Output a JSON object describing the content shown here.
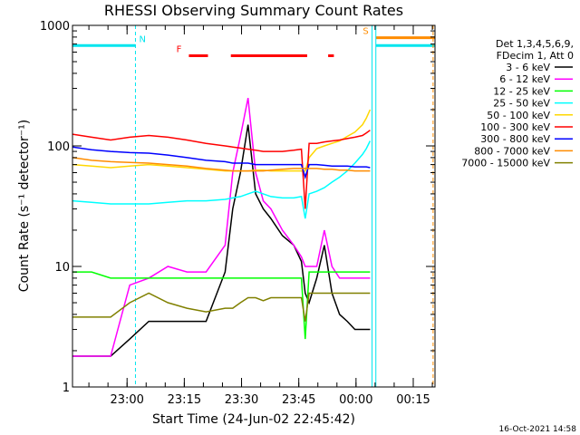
{
  "chart_data": {
    "type": "line",
    "title": "RHESSI Observing Summary Count Rates",
    "xlabel": "Start Time (24-Jun-02 22:45:42)",
    "ylabel": "Count Rate (s⁻¹ detector⁻¹)",
    "ylog": true,
    "ylim": [
      1,
      1000
    ],
    "xlim_minutes_after_start": [
      0,
      95
    ],
    "x_ticks": [
      "23:00",
      "23:15",
      "23:30",
      "23:45",
      "00:00",
      "00:15"
    ],
    "x_tick_minutes": [
      14.3,
      29.3,
      44.3,
      59.3,
      74.3,
      89.3
    ],
    "y_ticks": [
      "1",
      "10",
      "100",
      "1000"
    ],
    "y_tick_values": [
      1,
      10,
      100,
      1000
    ],
    "legend_header": [
      "Det 1,3,4,5,6,9,",
      "FDecim 1, Att 0"
    ],
    "legend_position": "right",
    "flags": [
      {
        "label": "N",
        "color": "#00e5ee",
        "segments": [
          [
            0,
            16.5
          ]
        ],
        "level": 680
      },
      {
        "label": "F",
        "color": "#ff0000",
        "segments": [
          [
            30.5,
            35.5
          ],
          [
            41.5,
            61.5
          ],
          [
            67,
            68.5
          ]
        ],
        "level": 560
      },
      {
        "label": "S",
        "color": "#ff8c00",
        "segments": [
          [
            79.5,
            95
          ]
        ],
        "level": 790
      },
      {
        "label": "",
        "color": "#00e5ee",
        "segments": [
          [
            79.5,
            95
          ]
        ],
        "level": 680
      }
    ],
    "vlines": [
      {
        "minute": 16.5,
        "color": "#00e5ee",
        "dashed": true
      },
      {
        "minute": 78.5,
        "color": "#00e5ee",
        "dashed": false
      },
      {
        "minute": 79.5,
        "color": "#00e5ee",
        "dashed": false
      },
      {
        "minute": 94.5,
        "color": "#ff8c00",
        "dashed": true
      },
      {
        "minute": 95.2,
        "color": "#00e5ee",
        "dashed": true
      }
    ],
    "x": [
      0,
      5,
      10,
      15,
      20,
      25,
      30,
      35,
      40,
      42,
      44,
      46,
      48,
      50,
      52,
      55,
      58,
      60,
      61,
      62,
      64,
      66,
      68,
      70,
      72,
      74,
      76,
      77,
      78
    ],
    "series": [
      {
        "name": "3 - 6 keV",
        "color": "#000000",
        "values": [
          1.8,
          1.8,
          1.8,
          2.5,
          3.5,
          3.5,
          3.5,
          3.5,
          9,
          30,
          60,
          150,
          40,
          30,
          25,
          18,
          15,
          11,
          6,
          5,
          8,
          15,
          6,
          4,
          3.5,
          3,
          3,
          3,
          3
        ]
      },
      {
        "name": "6 - 12 keV",
        "color": "#ff00ff",
        "values": [
          1.8,
          1.8,
          1.8,
          7,
          8,
          10,
          9,
          9,
          15,
          60,
          120,
          250,
          60,
          35,
          30,
          20,
          15,
          12,
          10,
          10,
          10,
          20,
          10,
          8,
          8,
          8,
          8,
          8,
          8
        ]
      },
      {
        "name": "12 - 25 keV",
        "color": "#00ff00",
        "values": [
          9,
          9,
          8,
          8,
          8,
          8,
          8,
          8,
          8,
          8,
          8,
          8,
          8,
          8,
          8,
          8,
          8,
          8,
          2.5,
          9,
          9,
          9,
          9,
          9,
          9,
          9,
          9,
          9,
          9
        ]
      },
      {
        "name": "25 - 50 keV",
        "color": "#00ffff",
        "values": [
          35,
          34,
          33,
          33,
          33,
          34,
          35,
          35,
          36,
          37,
          38,
          40,
          42,
          40,
          38,
          37,
          37,
          38,
          25,
          40,
          42,
          45,
          50,
          55,
          62,
          72,
          85,
          95,
          110
        ]
      },
      {
        "name": "50 - 100 keV",
        "color": "#ffd700",
        "values": [
          70,
          68,
          66,
          68,
          70,
          68,
          66,
          64,
          62,
          62,
          62,
          62,
          63,
          63,
          62,
          62,
          62,
          62,
          62,
          80,
          95,
          100,
          105,
          110,
          120,
          130,
          150,
          170,
          200
        ]
      },
      {
        "name": "100 - 300 keV",
        "color": "#ff0000",
        "values": [
          125,
          118,
          112,
          118,
          122,
          118,
          112,
          105,
          100,
          98,
          96,
          94,
          92,
          90,
          90,
          90,
          92,
          94,
          30,
          105,
          105,
          108,
          110,
          112,
          115,
          118,
          122,
          128,
          135
        ]
      },
      {
        "name": "300 - 800 keV",
        "color": "#0000ff",
        "values": [
          98,
          93,
          90,
          88,
          87,
          84,
          80,
          76,
          74,
          72,
          72,
          72,
          70,
          70,
          70,
          70,
          70,
          70,
          55,
          70,
          70,
          69,
          68,
          68,
          68,
          67,
          67,
          67,
          66
        ]
      },
      {
        "name": "800 - 7000 keV",
        "color": "#ff8c00",
        "values": [
          80,
          76,
          74,
          73,
          72,
          70,
          68,
          65,
          63,
          62,
          62,
          62,
          62,
          62,
          63,
          64,
          65,
          65,
          65,
          65,
          65,
          64,
          64,
          63,
          63,
          62,
          62,
          62,
          62
        ]
      },
      {
        "name": "7000 - 15000 keV",
        "color": "#808000",
        "values": [
          3.8,
          3.8,
          3.8,
          5,
          6,
          5,
          4.5,
          4.2,
          4.5,
          4.5,
          5,
          5.5,
          5.5,
          5.2,
          5.5,
          5.5,
          5.5,
          5.5,
          3.5,
          6,
          6,
          6,
          6,
          6,
          6,
          6,
          6,
          6,
          6
        ]
      }
    ]
  },
  "footer": {
    "timestamp": "16-Oct-2021 14:58"
  }
}
